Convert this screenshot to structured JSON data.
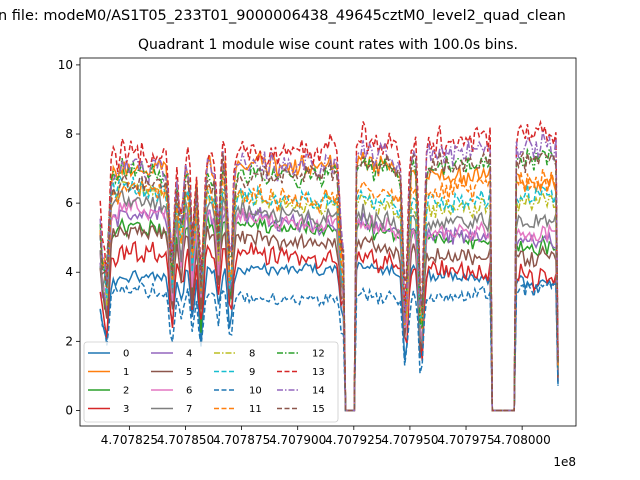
{
  "chart_data": {
    "type": "line",
    "suptitle": "n file: modeM0/AS1T05_233T01_9000006438_49645cztM0_level2_quad_clean",
    "title": "Quadrant 1 module wise count rates with 100.0s bins.",
    "xlabel": "",
    "ylabel": "",
    "x_offset_label": "1e8",
    "x_tick_labels": [
      "4.707825",
      "4.707850",
      "4.707875",
      "4.707900",
      "4.707925",
      "4.707950",
      "4.707975",
      "4.708000"
    ],
    "x_tick_values": [
      4.707825,
      4.70785,
      4.707875,
      4.7079,
      4.707925,
      4.70795,
      4.707975,
      4.708
    ],
    "y_tick_labels": [
      "0",
      "2",
      "4",
      "6",
      "8",
      "10"
    ],
    "y_tick_values": [
      0,
      2,
      4,
      6,
      8,
      10
    ],
    "xlim": [
      4.707803,
      4.708024
    ],
    "ylim": [
      -0.45,
      10.2
    ],
    "grid": false,
    "legend_placement": "lower-left",
    "legend_columns": 4,
    "x_start": 4.707812,
    "x_end": 4.708016,
    "series": [
      {
        "name": "0",
        "color": "#1f77b4",
        "dash": "solid",
        "base": 3.75,
        "amp": 0.15
      },
      {
        "name": "1",
        "color": "#ff7f0e",
        "dash": "solid",
        "base": 6.75,
        "amp": 0.25
      },
      {
        "name": "2",
        "color": "#2ca02c",
        "dash": "solid",
        "base": 5.0,
        "amp": 0.2
      },
      {
        "name": "3",
        "color": "#d62728",
        "dash": "solid",
        "base": 4.2,
        "amp": 0.25
      },
      {
        "name": "4",
        "color": "#9467bd",
        "dash": "solid",
        "base": 5.3,
        "amp": 0.2
      },
      {
        "name": "5",
        "color": "#8c564b",
        "dash": "solid",
        "base": 4.8,
        "amp": 0.2
      },
      {
        "name": "6",
        "color": "#e377c2",
        "dash": "solid",
        "base": 5.5,
        "amp": 0.2
      },
      {
        "name": "7",
        "color": "#7f7f7f",
        "dash": "solid",
        "base": 5.8,
        "amp": 0.2
      },
      {
        "name": "8",
        "color": "#bcbd22",
        "dash": "dashdot",
        "base": 6.2,
        "amp": 0.2
      },
      {
        "name": "9",
        "color": "#17becf",
        "dash": "dashed",
        "base": 6.35,
        "amp": 0.25
      },
      {
        "name": "10",
        "color": "#1f77b4",
        "dash": "dashed",
        "base": 3.55,
        "amp": 0.15
      },
      {
        "name": "11",
        "color": "#ff7f0e",
        "dash": "dashed",
        "base": 6.5,
        "amp": 0.25
      },
      {
        "name": "12",
        "color": "#2ca02c",
        "dash": "dashdot",
        "base": 7.1,
        "amp": 0.25
      },
      {
        "name": "13",
        "color": "#d62728",
        "dash": "dashed",
        "base": 7.7,
        "amp": 0.35
      },
      {
        "name": "14",
        "color": "#9467bd",
        "dash": "dashdot",
        "base": 7.3,
        "amp": 0.3
      },
      {
        "name": "15",
        "color": "#8c564b",
        "dash": "dashed",
        "base": 6.9,
        "amp": 0.25
      }
    ],
    "features": [
      {
        "x": 4.707813,
        "depth": 0.42
      },
      {
        "x": 4.707815,
        "depth": 0.55
      },
      {
        "x": 4.707844,
        "depth": 0.5
      },
      {
        "x": 4.707848,
        "depth": 0.3
      },
      {
        "x": 4.707853,
        "depth": 0.42
      },
      {
        "x": 4.707857,
        "depth": 0.6
      },
      {
        "x": 4.707865,
        "depth": 0.4
      },
      {
        "x": 4.70787,
        "depth": 0.5
      },
      {
        "x": 4.70792,
        "depth": 0.52
      },
      {
        "x": 4.707948,
        "depth": 0.78
      },
      {
        "x": 4.707955,
        "depth": 0.88
      },
      {
        "x": 4.707988,
        "depth": 0.9
      }
    ],
    "zero_intervals": [
      [
        4.707921,
        4.707926
      ],
      [
        4.707986,
        4.707997
      ]
    ],
    "peaks": [
      {
        "x": 4.707866,
        "boost": 1.35
      },
      {
        "x": 4.707852,
        "boost": 1.15
      },
      {
        "x": 4.707929,
        "boost": 1.1
      }
    ]
  }
}
